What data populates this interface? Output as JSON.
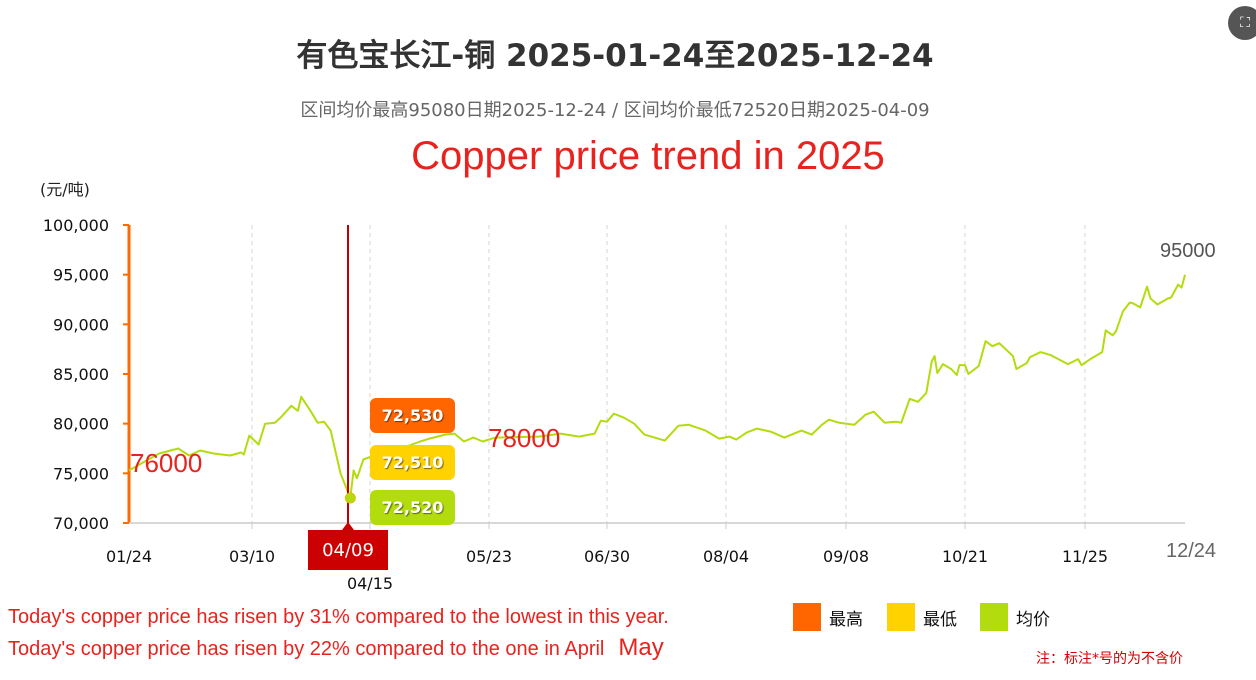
{
  "header": {
    "title": "有色宝长江-铜 2025-01-24至2025-12-24",
    "subtitle": "区间均价最高95080日期2025-12-24 / 区间均价最低72520日期2025-04-09",
    "overlay_title": "Copper price trend in 2025"
  },
  "chart_data": {
    "type": "line",
    "ylabel": "(元/吨)",
    "ylim": [
      70000,
      100000
    ],
    "yticks": [
      "100,000",
      "95,000",
      "90,000",
      "85,000",
      "80,000",
      "75,000",
      "70,000"
    ],
    "xticks": [
      "01/24",
      "03/10",
      "04/15",
      "05/23",
      "06/30",
      "08/04",
      "09/08",
      "10/21",
      "11/25",
      "12/24"
    ],
    "grid": "vertical dashed",
    "legend": {
      "position": "bottom-right",
      "items": [
        {
          "label": "最高",
          "color": "#ff6600"
        },
        {
          "label": "最低",
          "color": "#ffd200"
        },
        {
          "label": "均价",
          "color": "#b3dc0e"
        }
      ]
    },
    "series": [
      {
        "color": "#b3dc0e",
        "points": [
          [
            "01/24",
            75300
          ],
          [
            "02/04",
            77000
          ],
          [
            "02/11",
            77500
          ],
          [
            "02/15",
            76800
          ],
          [
            "02/19",
            77300
          ],
          [
            "02/24",
            77000
          ],
          [
            "03/02",
            76800
          ],
          [
            "03/06",
            77100
          ],
          [
            "03/07",
            76900
          ],
          [
            "03/09",
            78800
          ],
          [
            "03/12",
            77900
          ],
          [
            "03/14",
            80000
          ],
          [
            "03/17",
            80100
          ],
          [
            "03/19",
            80700
          ],
          [
            "03/22",
            81800
          ],
          [
            "03/24",
            81300
          ],
          [
            "03/25",
            82700
          ],
          [
            "03/28",
            81200
          ],
          [
            "03/30",
            80100
          ],
          [
            "04/01",
            80200
          ],
          [
            "04/03",
            79300
          ],
          [
            "04/06",
            75000
          ],
          [
            "04/09",
            72520
          ],
          [
            "04/10",
            75300
          ],
          [
            "04/11",
            74500
          ],
          [
            "04/13",
            76400
          ],
          [
            "04/18",
            77000
          ],
          [
            "04/25",
            77500
          ],
          [
            "05/01",
            78200
          ],
          [
            "05/04",
            78500
          ],
          [
            "05/09",
            78900
          ],
          [
            "05/12",
            79000
          ],
          [
            "05/15",
            78200
          ],
          [
            "05/18",
            78600
          ],
          [
            "05/21",
            78200
          ],
          [
            "05/25",
            78600
          ],
          [
            "06/08",
            78700
          ],
          [
            "06/15",
            79000
          ],
          [
            "06/21",
            78700
          ],
          [
            "06/26",
            79000
          ],
          [
            "06/28",
            80300
          ],
          [
            "06/30",
            80200
          ],
          [
            "07/02",
            81000
          ],
          [
            "07/05",
            80600
          ],
          [
            "07/08",
            80000
          ],
          [
            "07/11",
            78900
          ],
          [
            "07/14",
            78600
          ],
          [
            "07/17",
            78300
          ],
          [
            "07/21",
            79800
          ],
          [
            "07/24",
            79900
          ],
          [
            "07/29",
            79300
          ],
          [
            "08/02",
            78500
          ],
          [
            "08/05",
            78700
          ],
          [
            "08/07",
            78400
          ],
          [
            "08/10",
            79100
          ],
          [
            "08/13",
            79500
          ],
          [
            "08/17",
            79200
          ],
          [
            "08/21",
            78600
          ],
          [
            "08/26",
            79300
          ],
          [
            "08/29",
            78900
          ],
          [
            "09/01",
            79900
          ],
          [
            "09/03",
            80400
          ],
          [
            "09/06",
            80100
          ],
          [
            "09/11",
            79900
          ],
          [
            "09/15",
            80900
          ],
          [
            "09/18",
            81200
          ],
          [
            "09/22",
            80100
          ],
          [
            "09/26",
            80200
          ],
          [
            "09/28",
            80100
          ],
          [
            "10/01",
            82500
          ],
          [
            "10/04",
            82200
          ],
          [
            "10/07",
            83100
          ],
          [
            "10/09",
            86300
          ],
          [
            "10/10",
            86800
          ],
          [
            "10/11",
            85100
          ],
          [
            "10/13",
            86000
          ],
          [
            "10/16",
            85500
          ],
          [
            "10/18",
            84900
          ],
          [
            "10/19",
            85900
          ],
          [
            "10/21",
            85900
          ],
          [
            "10/22",
            85000
          ],
          [
            "10/25",
            85800
          ],
          [
            "10/27",
            88300
          ],
          [
            "10/29",
            87800
          ],
          [
            "10/31",
            88100
          ],
          [
            "11/04",
            86800
          ],
          [
            "11/05",
            85500
          ],
          [
            "11/08",
            86100
          ],
          [
            "11/09",
            86700
          ],
          [
            "11/12",
            87200
          ],
          [
            "11/15",
            86900
          ],
          [
            "11/20",
            86000
          ],
          [
            "11/23",
            86500
          ],
          [
            "11/24",
            85900
          ],
          [
            "11/27",
            86600
          ],
          [
            "11/30",
            87200
          ],
          [
            "12/01",
            89400
          ],
          [
            "12/03",
            88900
          ],
          [
            "12/04",
            89300
          ],
          [
            "12/06",
            91300
          ],
          [
            "12/08",
            92200
          ],
          [
            "12/09",
            92100
          ],
          [
            "12/11",
            91700
          ],
          [
            "12/13",
            93800
          ],
          [
            "12/14",
            92600
          ],
          [
            "12/16",
            92000
          ],
          [
            "12/19",
            92600
          ],
          [
            "12/20",
            92700
          ],
          [
            "12/22",
            94000
          ],
          [
            "12/23",
            93700
          ],
          [
            "12/24",
            95000
          ]
        ]
      }
    ],
    "tooltip": {
      "date": "04/09",
      "high": "72,530",
      "low": "72,510",
      "avg": "72,520",
      "avg_value": 72520
    },
    "annotations": {
      "left_value": "76000",
      "mid_value": "78000",
      "end_value": "95000",
      "end_date": "12/24"
    }
  },
  "notes": {
    "line1": "Today's copper price has risen by 31% compared to the lowest in this year.",
    "line2": "Today's copper price has risen by 22% compared to the one in April",
    "overlap_word": "May",
    "footnote": "注：标注*号的为不含价"
  },
  "corner_button_icon": "screenshot-icon"
}
